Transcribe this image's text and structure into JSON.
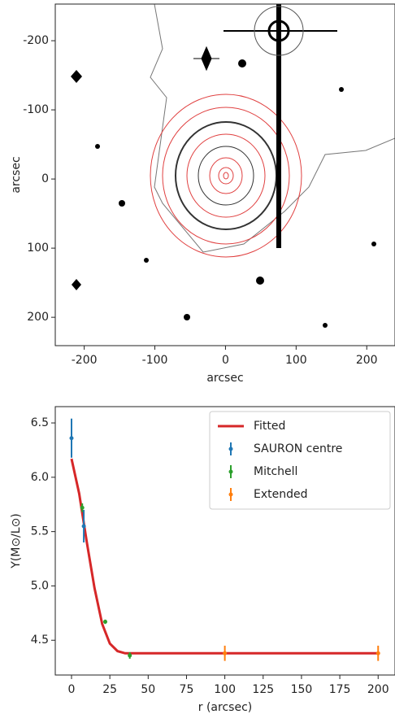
{
  "chart_data": [
    {
      "type": "image",
      "xlabel": "arcsec",
      "ylabel": "arcsec",
      "xlim": [
        -241,
        240
      ],
      "ylim": [
        -253,
        241
      ],
      "y_inverted": true,
      "xticks": [
        -200,
        -100,
        0,
        100,
        200
      ],
      "yticks": [
        -200,
        -100,
        0,
        100,
        200
      ]
    },
    {
      "type": "errorbar",
      "xlabel": "r (arcsec)",
      "ylabel": "Υ(M⊙/L⊙)",
      "xlim": [
        -10.6,
        211
      ],
      "ylim": [
        4.18,
        6.65
      ],
      "xticks": [
        0,
        25,
        50,
        75,
        100,
        125,
        150,
        175,
        200
      ],
      "yticks": [
        4.5,
        {
          "value": 5,
          "label": "5.0"
        },
        5.5,
        {
          "value": 6,
          "label": "6.0"
        },
        6.5
      ],
      "legend": "upper right",
      "series": [
        {
          "name": "Fitted",
          "kind": "line",
          "color": "#d62728",
          "x": [
            0,
            5,
            10,
            15,
            20,
            25,
            30,
            35,
            40,
            60,
            100,
            150,
            200
          ],
          "values": [
            6.17,
            5.85,
            5.4,
            4.98,
            4.65,
            4.47,
            4.4,
            4.38,
            4.38,
            4.38,
            4.38,
            4.38,
            4.38
          ]
        },
        {
          "name": "SAURON centre",
          "kind": "errorbar",
          "color": "#1f77b4",
          "x": [
            0,
            8
          ],
          "values": [
            6.36,
            5.55
          ],
          "errors": [
            0.18,
            0.15
          ]
        },
        {
          "name": "Mitchell",
          "kind": "errorbar",
          "color": "#2ca02c",
          "x": [
            7,
            22,
            38
          ],
          "values": [
            5.72,
            4.67,
            4.36
          ],
          "errors": [
            0.04,
            0.02,
            0.03
          ]
        },
        {
          "name": "Extended",
          "kind": "errorbar",
          "color": "#ff7f0e",
          "x": [
            100,
            200
          ],
          "values": [
            4.38,
            4.38
          ],
          "errors": [
            0.07,
            0.07
          ]
        }
      ]
    }
  ]
}
